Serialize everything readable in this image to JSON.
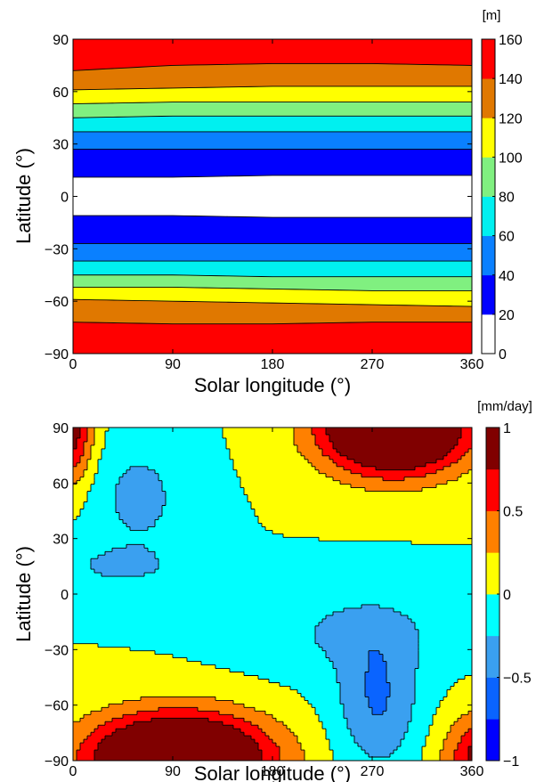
{
  "chart_data": [
    {
      "type": "heatmap",
      "subtype": "filled-contour",
      "xlabel": "Solar longitude (°)",
      "ylabel": "Latitude (°)",
      "xlim": [
        0,
        360
      ],
      "ylim": [
        -90,
        90
      ],
      "x_ticks": [
        "0",
        "90",
        "180",
        "270",
        "360"
      ],
      "y_ticks": [
        "90",
        "60",
        "30",
        "0",
        "−30",
        "−60",
        "−90"
      ],
      "colorbar": {
        "unit": "[m]",
        "levels": [
          0,
          20,
          40,
          60,
          80,
          100,
          120,
          140,
          160
        ],
        "tick_labels": [
          "160",
          "140",
          "120",
          "100",
          "80",
          "60",
          "40",
          "20",
          "0"
        ],
        "colors": [
          "#ffffff",
          "#0000ff",
          "#0a80ff",
          "#00f0f0",
          "#80f080",
          "#ffff00",
          "#e07800",
          "#ff0000"
        ]
      },
      "contour_boundaries": [
        {
          "level": 20,
          "north": [
            [
              0,
              11
            ],
            [
              90,
              11
            ],
            [
              180,
              12
            ],
            [
              270,
              12
            ],
            [
              360,
              12
            ]
          ],
          "south": [
            [
              0,
              -11
            ],
            [
              90,
              -11
            ],
            [
              180,
              -12
            ],
            [
              270,
              -12
            ],
            [
              360,
              -12
            ]
          ]
        },
        {
          "level": 40,
          "north": [
            [
              0,
              27
            ],
            [
              90,
              27
            ],
            [
              180,
              27
            ],
            [
              270,
              27
            ],
            [
              360,
              27
            ]
          ],
          "south": [
            [
              0,
              -27
            ],
            [
              90,
              -27
            ],
            [
              180,
              -27
            ],
            [
              270,
              -27
            ],
            [
              360,
              -27
            ]
          ]
        },
        {
          "level": 60,
          "north": [
            [
              0,
              37
            ],
            [
              90,
              37
            ],
            [
              180,
              37
            ],
            [
              270,
              37
            ],
            [
              360,
              37
            ]
          ],
          "south": [
            [
              0,
              -37
            ],
            [
              90,
              -37
            ],
            [
              180,
              -37
            ],
            [
              270,
              -37
            ],
            [
              360,
              -37
            ]
          ]
        },
        {
          "level": 80,
          "north": [
            [
              0,
              45
            ],
            [
              90,
              46
            ],
            [
              180,
              46
            ],
            [
              270,
              46
            ],
            [
              360,
              46
            ]
          ],
          "south": [
            [
              0,
              -45
            ],
            [
              90,
              -45
            ],
            [
              180,
              -46
            ],
            [
              270,
              -46
            ],
            [
              360,
              -46
            ]
          ]
        },
        {
          "level": 100,
          "north": [
            [
              0,
              53
            ],
            [
              90,
              54
            ],
            [
              180,
              54
            ],
            [
              270,
              54
            ],
            [
              360,
              54
            ]
          ],
          "south": [
            [
              0,
              -52
            ],
            [
              90,
              -52
            ],
            [
              180,
              -53
            ],
            [
              270,
              -54
            ],
            [
              360,
              -54
            ]
          ]
        },
        {
          "level": 120,
          "north": [
            [
              0,
              61
            ],
            [
              90,
              62
            ],
            [
              180,
              63
            ],
            [
              270,
              63
            ],
            [
              360,
              63
            ]
          ],
          "south": [
            [
              0,
              -59
            ],
            [
              90,
              -60
            ],
            [
              180,
              -61
            ],
            [
              270,
              -62
            ],
            [
              360,
              -63
            ]
          ]
        },
        {
          "level": 140,
          "north": [
            [
              0,
              72
            ],
            [
              90,
              75
            ],
            [
              180,
              76
            ],
            [
              270,
              76
            ],
            [
              360,
              75
            ]
          ],
          "south": [
            [
              0,
              -72
            ],
            [
              90,
              -73
            ],
            [
              180,
              -73
            ],
            [
              270,
              -72
            ],
            [
              360,
              -72
            ]
          ]
        }
      ]
    },
    {
      "type": "heatmap",
      "subtype": "filled-contour",
      "xlabel": "Solar longitude (°)",
      "ylabel": "Latitude (°)",
      "xlim": [
        0,
        360
      ],
      "ylim": [
        -90,
        90
      ],
      "x_ticks": [
        "0",
        "90",
        "180",
        "270",
        "360"
      ],
      "y_ticks": [
        "90",
        "60",
        "30",
        "0",
        "−30",
        "−60",
        "−90"
      ],
      "colorbar": {
        "unit": "[mm/day]",
        "levels": [
          -1,
          -0.75,
          -0.5,
          -0.25,
          0,
          0.25,
          0.5,
          0.75,
          1
        ],
        "tick_labels": [
          "1",
          "0.5",
          "0",
          "−0.5",
          "−1"
        ],
        "colors": [
          "#0000ff",
          "#0a64ff",
          "#3aa0f0",
          "#00ffff",
          "#ffff00",
          "#ff8000",
          "#ff0000",
          "#800000"
        ]
      },
      "features": [
        {
          "name": "southern-positive-lobe",
          "center": [
            95,
            -90
          ],
          "levels_reached": 1
        },
        {
          "name": "northern-positive-lobe",
          "center": [
            290,
            90
          ],
          "levels_reached": 1
        },
        {
          "name": "northern-negative-region",
          "center": [
            70,
            60
          ],
          "min_level": -0.5
        },
        {
          "name": "southern-negative-region",
          "center": [
            275,
            -55
          ],
          "min_level": -0.75
        }
      ]
    }
  ]
}
